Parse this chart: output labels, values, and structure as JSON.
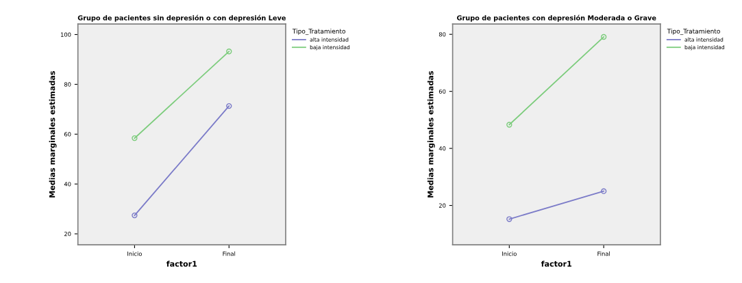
{
  "chart_data": [
    {
      "type": "line",
      "title": "Grupo de pacientes sin depresión o con depresión Leve",
      "xlabel": "factor1",
      "ylabel": "Medias marginales estimadas",
      "legend_title": "Tipo_Tratamiento",
      "categories": [
        "Inicio",
        "Final"
      ],
      "series": [
        {
          "name": "alta intensidad",
          "color": "#7b7bc8",
          "values": [
            27.4,
            71.3
          ]
        },
        {
          "name": "baja intensidad",
          "color": "#7ccc7c",
          "values": [
            58.4,
            93.2
          ]
        }
      ],
      "ylim": [
        15.6,
        104.2
      ],
      "yticks": [
        20,
        40,
        60,
        80,
        100
      ],
      "grid": false,
      "legend": "top right",
      "marker": "circle",
      "line_style": "solid"
    },
    {
      "type": "line",
      "title": "Grupo de pacientes con depresión Moderada o Grave",
      "xlabel": "factor1",
      "ylabel": "Medias marginales estimadas",
      "legend_title": "Tipo_Tratamiento",
      "categories": [
        "Inicio",
        "Final"
      ],
      "series": [
        {
          "name": "alta intensidad",
          "color": "#7b7bc8",
          "values": [
            15.2,
            25.0
          ]
        },
        {
          "name": "baja intensidad",
          "color": "#7ccc7c",
          "values": [
            48.3,
            79.1
          ]
        }
      ],
      "ylim": [
        6.2,
        83.6
      ],
      "yticks": [
        20,
        40,
        60,
        80
      ],
      "grid": false,
      "legend": "top right",
      "marker": "circle",
      "line_style": "solid"
    }
  ]
}
